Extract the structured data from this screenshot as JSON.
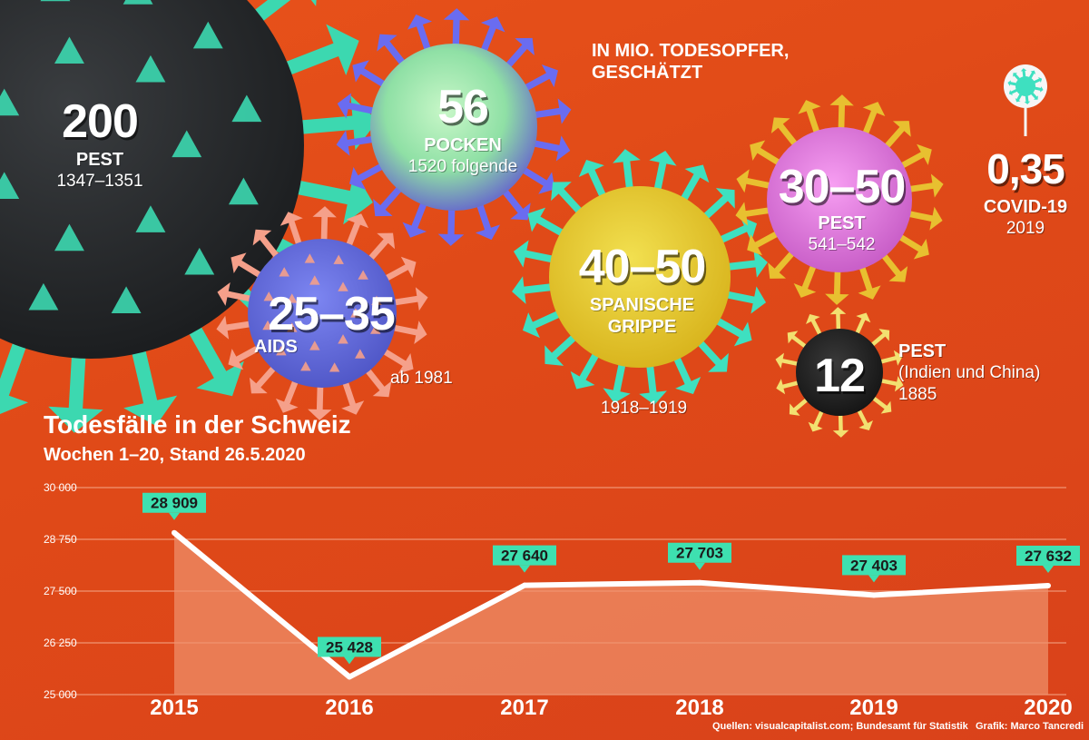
{
  "header": {
    "unit_note_1": "IN MIO. TODESOPFER,",
    "unit_note_2": "GESCHÄTZT"
  },
  "viruses": [
    {
      "value": "200",
      "label": "PEST",
      "years": "1347–1351"
    },
    {
      "value": "56",
      "label": "POCKEN",
      "years": "1520 folgende"
    },
    {
      "value": "25–35",
      "label": "AIDS",
      "years": "ab 1981"
    },
    {
      "value": "40–50",
      "label_1": "SPANISCHE",
      "label_2": "GRIPPE",
      "years": "1918–1919"
    },
    {
      "value": "30–50",
      "label": "PEST",
      "years": "541–542"
    },
    {
      "value": "12",
      "label_1": "PEST",
      "label_2": "(Indien und China)",
      "years": "1885"
    },
    {
      "value": "0,35",
      "label": "COVID-19",
      "years": "2019"
    }
  ],
  "chart_data": {
    "type": "area",
    "title": "Todesfälle in der Schweiz",
    "subtitle": "Wochen 1–20, Stand 26.5.2020",
    "categories": [
      "2015",
      "2016",
      "2017",
      "2018",
      "2019",
      "2020"
    ],
    "values": [
      28909,
      25428,
      27640,
      27703,
      27403,
      27632
    ],
    "data_labels": [
      "28 909",
      "25 428",
      "27 640",
      "27 703",
      "27 403",
      "27 632"
    ],
    "ylim": [
      25000,
      30000
    ],
    "yticks": [
      25000,
      26250,
      27500,
      28750,
      30000
    ],
    "ytick_labels": [
      "25 000",
      "26 250",
      "27 500",
      "28 750",
      "30 000"
    ],
    "grid": true
  },
  "footer": {
    "sources": "Quellen: visualcapitalist.com; Bundesamt für Statistik",
    "credit": "Grafik: Marco Tancredi"
  },
  "colors": {
    "background": "#e04a18",
    "label_fill": "#3ee0b0",
    "line": "#ffffff",
    "area": "#f0936e"
  }
}
